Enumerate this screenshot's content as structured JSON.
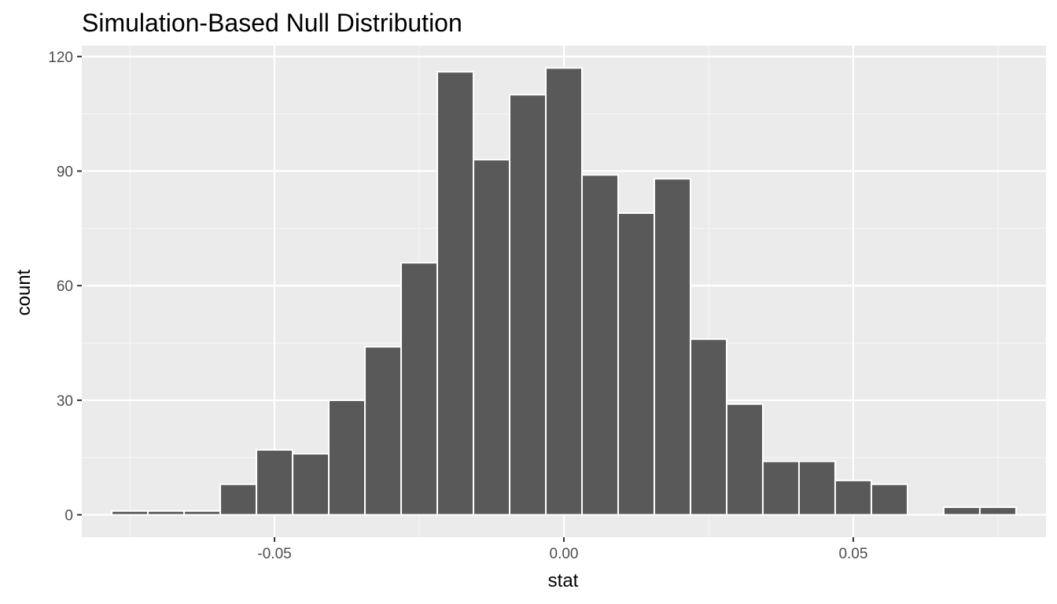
{
  "chart_data": {
    "type": "bar",
    "title": "Simulation-Based Null Distribution",
    "xlabel": "stat",
    "ylabel": "count",
    "bin_width": 0.00625,
    "bins": [
      {
        "center": -0.075,
        "count": 1
      },
      {
        "center": -0.06875,
        "count": 1
      },
      {
        "center": -0.0625,
        "count": 1
      },
      {
        "center": -0.05625,
        "count": 8
      },
      {
        "center": -0.05,
        "count": 17
      },
      {
        "center": -0.04375,
        "count": 16
      },
      {
        "center": -0.0375,
        "count": 30
      },
      {
        "center": -0.03125,
        "count": 44
      },
      {
        "center": -0.025,
        "count": 66
      },
      {
        "center": -0.01875,
        "count": 116
      },
      {
        "center": -0.0125,
        "count": 93
      },
      {
        "center": -0.00625,
        "count": 110
      },
      {
        "center": 0.0,
        "count": 117
      },
      {
        "center": 0.00625,
        "count": 89
      },
      {
        "center": 0.0125,
        "count": 79
      },
      {
        "center": 0.01875,
        "count": 88
      },
      {
        "center": 0.025,
        "count": 46
      },
      {
        "center": 0.03125,
        "count": 29
      },
      {
        "center": 0.0375,
        "count": 14
      },
      {
        "center": 0.04375,
        "count": 14
      },
      {
        "center": 0.05,
        "count": 9
      },
      {
        "center": 0.05625,
        "count": 8
      },
      {
        "center": 0.0625,
        "count": 0
      },
      {
        "center": 0.06875,
        "count": 2
      },
      {
        "center": 0.075,
        "count": 2
      }
    ],
    "xlim": [
      -0.0833,
      0.0833
    ],
    "ylim": [
      -5.85,
      122.85
    ],
    "x_ticks": [
      {
        "value": -0.05,
        "label": "-0.05"
      },
      {
        "value": 0.0,
        "label": "0.00"
      },
      {
        "value": 0.05,
        "label": "0.05"
      }
    ],
    "y_ticks": [
      {
        "value": 0,
        "label": "0"
      },
      {
        "value": 30,
        "label": "30"
      },
      {
        "value": 60,
        "label": "60"
      },
      {
        "value": 90,
        "label": "90"
      },
      {
        "value": 120,
        "label": "120"
      }
    ],
    "grid": true,
    "colors": {
      "panel_background": "#EBEBEB",
      "grid_major": "#FFFFFF",
      "grid_minor": "#F5F5F5",
      "bar_fill": "#595959",
      "bar_outline": "#FFFFFF",
      "tick_text": "#4D4D4D",
      "tick_mark": "#333333"
    }
  }
}
